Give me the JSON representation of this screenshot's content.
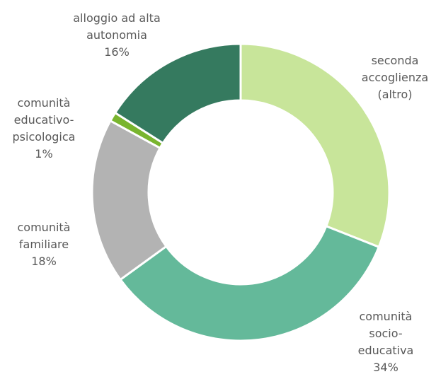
{
  "chart_data": {
    "type": "donut",
    "categories": [
      "seconda accoglienza (altro)",
      "comunità socio-educativa",
      "comunità familiare",
      "comunità educativo-psicologica",
      "alloggio ad alta autonomia"
    ],
    "values": [
      31,
      34,
      18,
      1,
      16
    ],
    "value_labels": [
      null,
      "34%",
      "18%",
      "1%",
      "16%"
    ],
    "colors": [
      "#c8e59a",
      "#64b99a",
      "#b3b3b3",
      "#79b52e",
      "#357a5f"
    ]
  }
}
